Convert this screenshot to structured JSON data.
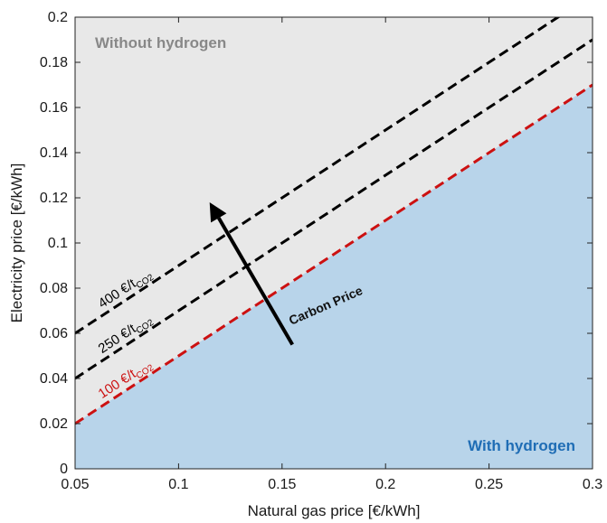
{
  "chart_data": {
    "type": "line",
    "xlabel": "Natural gas price [€/kWh]",
    "ylabel": "Electricity price [€/kWh]",
    "xlim": [
      0.05,
      0.3
    ],
    "ylim": [
      0,
      0.2
    ],
    "xticks": [
      "0.05",
      "0.1",
      "0.15",
      "0.2",
      "0.25",
      "0.3"
    ],
    "yticks": [
      "0",
      "0.02",
      "0.04",
      "0.06",
      "0.08",
      "0.1",
      "0.12",
      "0.14",
      "0.16",
      "0.18",
      "0.2"
    ],
    "grid": false,
    "series": [
      {
        "name": "100 €/tCO2",
        "label_main": "100 €/t",
        "label_sub": "CO2",
        "color": "#cc1111",
        "x": [
          0.05,
          0.3
        ],
        "y": [
          0.02,
          0.17
        ]
      },
      {
        "name": "250 €/tCO2",
        "label_main": "250 €/t",
        "label_sub": "CO2",
        "color": "#000000",
        "x": [
          0.05,
          0.3
        ],
        "y": [
          0.04,
          0.19
        ]
      },
      {
        "name": "400 €/tCO2",
        "label_main": "400 €/t",
        "label_sub": "CO2",
        "color": "#000000",
        "x": [
          0.05,
          0.3
        ],
        "y": [
          0.06,
          0.21
        ]
      }
    ],
    "regions": [
      {
        "label": "Without hydrogen",
        "color": "#e8e8e8",
        "text_color": "#888888"
      },
      {
        "label": "With hydrogen",
        "color": "#b8d4ea",
        "text_color": "#1f6db5"
      }
    ],
    "annotation": {
      "label": "Carbon Price",
      "from": [
        0.155,
        0.055
      ],
      "to": [
        0.115,
        0.118
      ]
    }
  }
}
